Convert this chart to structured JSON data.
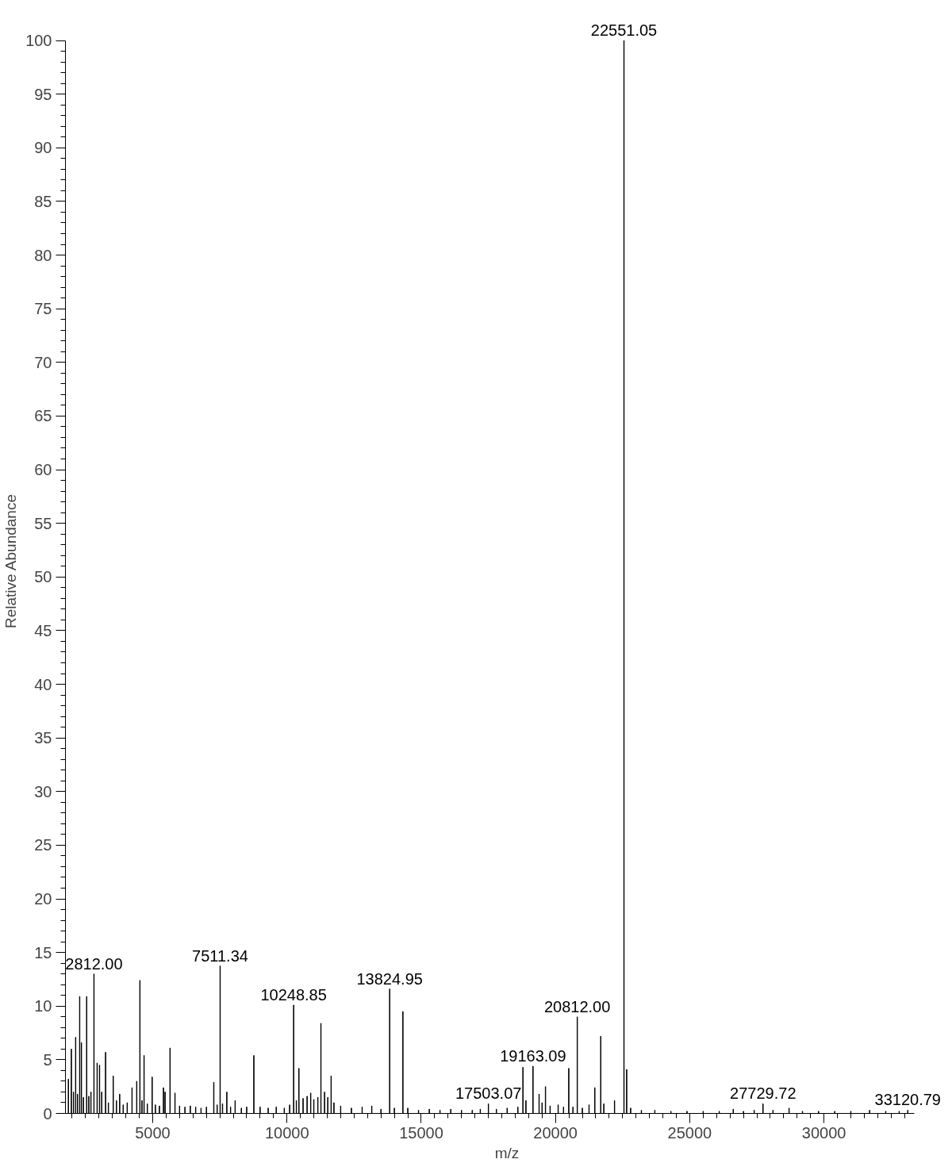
{
  "chart_data": {
    "type": "bar",
    "xlabel": "m/z",
    "ylabel": "Relative Abundance",
    "xlim": [
      1750,
      33370
    ],
    "ylim": [
      0,
      100
    ],
    "xticks": [
      5000,
      10000,
      15000,
      20000,
      25000,
      30000
    ],
    "yticks": [
      0,
      5,
      10,
      15,
      20,
      25,
      30,
      35,
      40,
      45,
      50,
      55,
      60,
      65,
      70,
      75,
      80,
      85,
      90,
      95,
      100
    ],
    "grid": false,
    "series": [
      {
        "color": "#000000",
        "x": [
          1860,
          1970,
          2050,
          2130,
          2200,
          2280,
          2345,
          2420,
          2540,
          2620,
          2700,
          2812,
          2930,
          3020,
          3100,
          3244,
          3350,
          3530,
          3650,
          3770,
          3900,
          4050,
          4230,
          4405,
          4523,
          4600,
          4678,
          4800,
          4980,
          5100,
          5250,
          5400,
          5460,
          5645,
          5830,
          6000,
          6200,
          6400,
          6600,
          6800,
          7000,
          7275,
          7400,
          7511.34,
          7600,
          7760,
          7900,
          8070,
          8300,
          8500,
          8767,
          9000,
          9300,
          9600,
          9900,
          10100,
          10248.85,
          10350,
          10445,
          10600,
          10750,
          10884,
          11000,
          11150,
          11265,
          11400,
          11520,
          11645,
          11750,
          12000,
          12400,
          12800,
          13158,
          13500,
          13824.95,
          14000,
          14318,
          14500,
          14900,
          15300,
          15700,
          16100,
          16500,
          16900,
          17200,
          17503.07,
          17800,
          18200,
          18600,
          18788,
          18900,
          19163.09,
          19390,
          19500,
          19628,
          19800,
          20100,
          20300,
          20495,
          20650,
          20812,
          21000,
          21250,
          21466,
          21686,
          21800,
          22200,
          22551.05,
          22652,
          22800,
          23200,
          23700,
          24300,
          24900,
          25500,
          26100,
          26620,
          27000,
          27400,
          27729.72,
          28100,
          28700,
          29200,
          29800,
          30400,
          31000,
          31700,
          32300,
          32800,
          33120.79
        ],
        "values": [
          3.2,
          6.0,
          2.0,
          7.1,
          1.8,
          10.9,
          6.6,
          1.5,
          10.9,
          1.6,
          2.0,
          13.0,
          4.7,
          4.5,
          2.0,
          5.7,
          1.0,
          3.5,
          1.2,
          1.8,
          0.8,
          1.0,
          2.4,
          3.0,
          12.4,
          1.2,
          5.4,
          0.9,
          3.4,
          0.8,
          0.7,
          2.4,
          2.0,
          6.1,
          1.9,
          0.7,
          0.6,
          0.7,
          0.6,
          0.5,
          0.6,
          2.9,
          0.8,
          13.75,
          0.9,
          2.0,
          0.6,
          1.2,
          0.5,
          0.6,
          5.4,
          0.6,
          0.5,
          0.6,
          0.5,
          0.8,
          10.1,
          1.2,
          4.2,
          1.4,
          1.6,
          1.9,
          1.3,
          1.5,
          8.4,
          2.0,
          1.5,
          3.5,
          1.0,
          0.7,
          0.5,
          0.6,
          0.7,
          0.4,
          11.6,
          0.5,
          9.5,
          0.5,
          0.3,
          0.4,
          0.3,
          0.4,
          0.3,
          0.3,
          0.4,
          0.9,
          0.4,
          0.5,
          0.6,
          4.3,
          1.2,
          4.4,
          1.8,
          1.0,
          2.5,
          0.7,
          0.8,
          0.6,
          4.2,
          0.6,
          9.0,
          0.5,
          0.8,
          2.4,
          7.2,
          0.9,
          1.2,
          100,
          4.1,
          0.5,
          0.3,
          0.3,
          0.2,
          0.2,
          0.2,
          0.2,
          0.4,
          0.2,
          0.3,
          0.9,
          0.3,
          0.5,
          0.2,
          0.2,
          0.2,
          0.2,
          0.3,
          0.2,
          0.2,
          0.3
        ]
      }
    ],
    "annotations": [
      {
        "text": "2812.00",
        "x": 2812,
        "y": 13.0
      },
      {
        "text": "7511.34",
        "x": 7511.34,
        "y": 13.75
      },
      {
        "text": "10248.85",
        "x": 10248.85,
        "y": 10.1
      },
      {
        "text": "13824.95",
        "x": 13824.95,
        "y": 11.6
      },
      {
        "text": "17503.07",
        "x": 17503.07,
        "y": 0.9
      },
      {
        "text": "19163.09",
        "x": 19163.09,
        "y": 4.4
      },
      {
        "text": "20812.00",
        "x": 20812,
        "y": 9.0
      },
      {
        "text": "22551.05",
        "x": 22551.05,
        "y": 100
      },
      {
        "text": "27729.72",
        "x": 27729.72,
        "y": 0.9
      },
      {
        "text": "33120.79",
        "x": 33120.79,
        "y": 0.3
      }
    ]
  }
}
